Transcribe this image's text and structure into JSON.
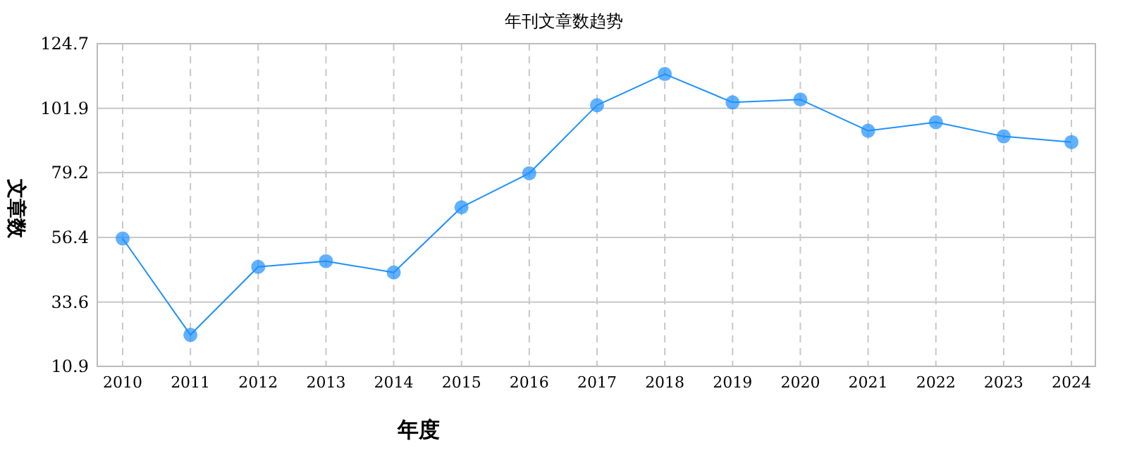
{
  "chart_data": {
    "type": "line",
    "title": "年刊文章数趋势",
    "xlabel": "年度",
    "ylabel": "文章数",
    "categories": [
      "2010",
      "2011",
      "2012",
      "2013",
      "2014",
      "2015",
      "2016",
      "2017",
      "2018",
      "2019",
      "2020",
      "2021",
      "2022",
      "2023",
      "2024"
    ],
    "series": [
      {
        "color": "#1e90ff",
        "values": [
          56,
          22,
          46,
          48,
          44,
          67,
          79,
          103,
          114,
          104,
          105,
          94,
          97,
          92,
          90
        ]
      }
    ],
    "ylim": [
      10.9,
      124.7
    ],
    "yticks": [
      10.9,
      33.6,
      56.4,
      79.2,
      101.9,
      124.7
    ],
    "grid": true,
    "marker": "circle",
    "line_style": "solid"
  }
}
